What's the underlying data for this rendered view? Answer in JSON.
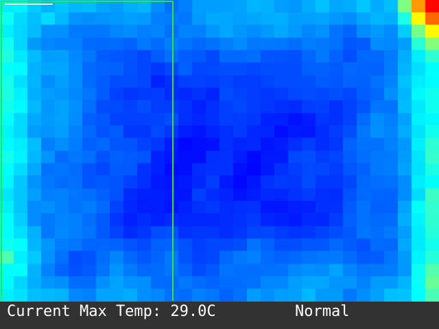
{
  "status_bar": {
    "max_temp_text": "Current Max Temp: 29.0C",
    "status_text": "Normal",
    "background_color": "#323232",
    "text_color": "#ffffff"
  },
  "thermal_view": {
    "colormap": "jet",
    "region_box_color": "#33e633",
    "hotspot_corner": "top-right"
  }
}
